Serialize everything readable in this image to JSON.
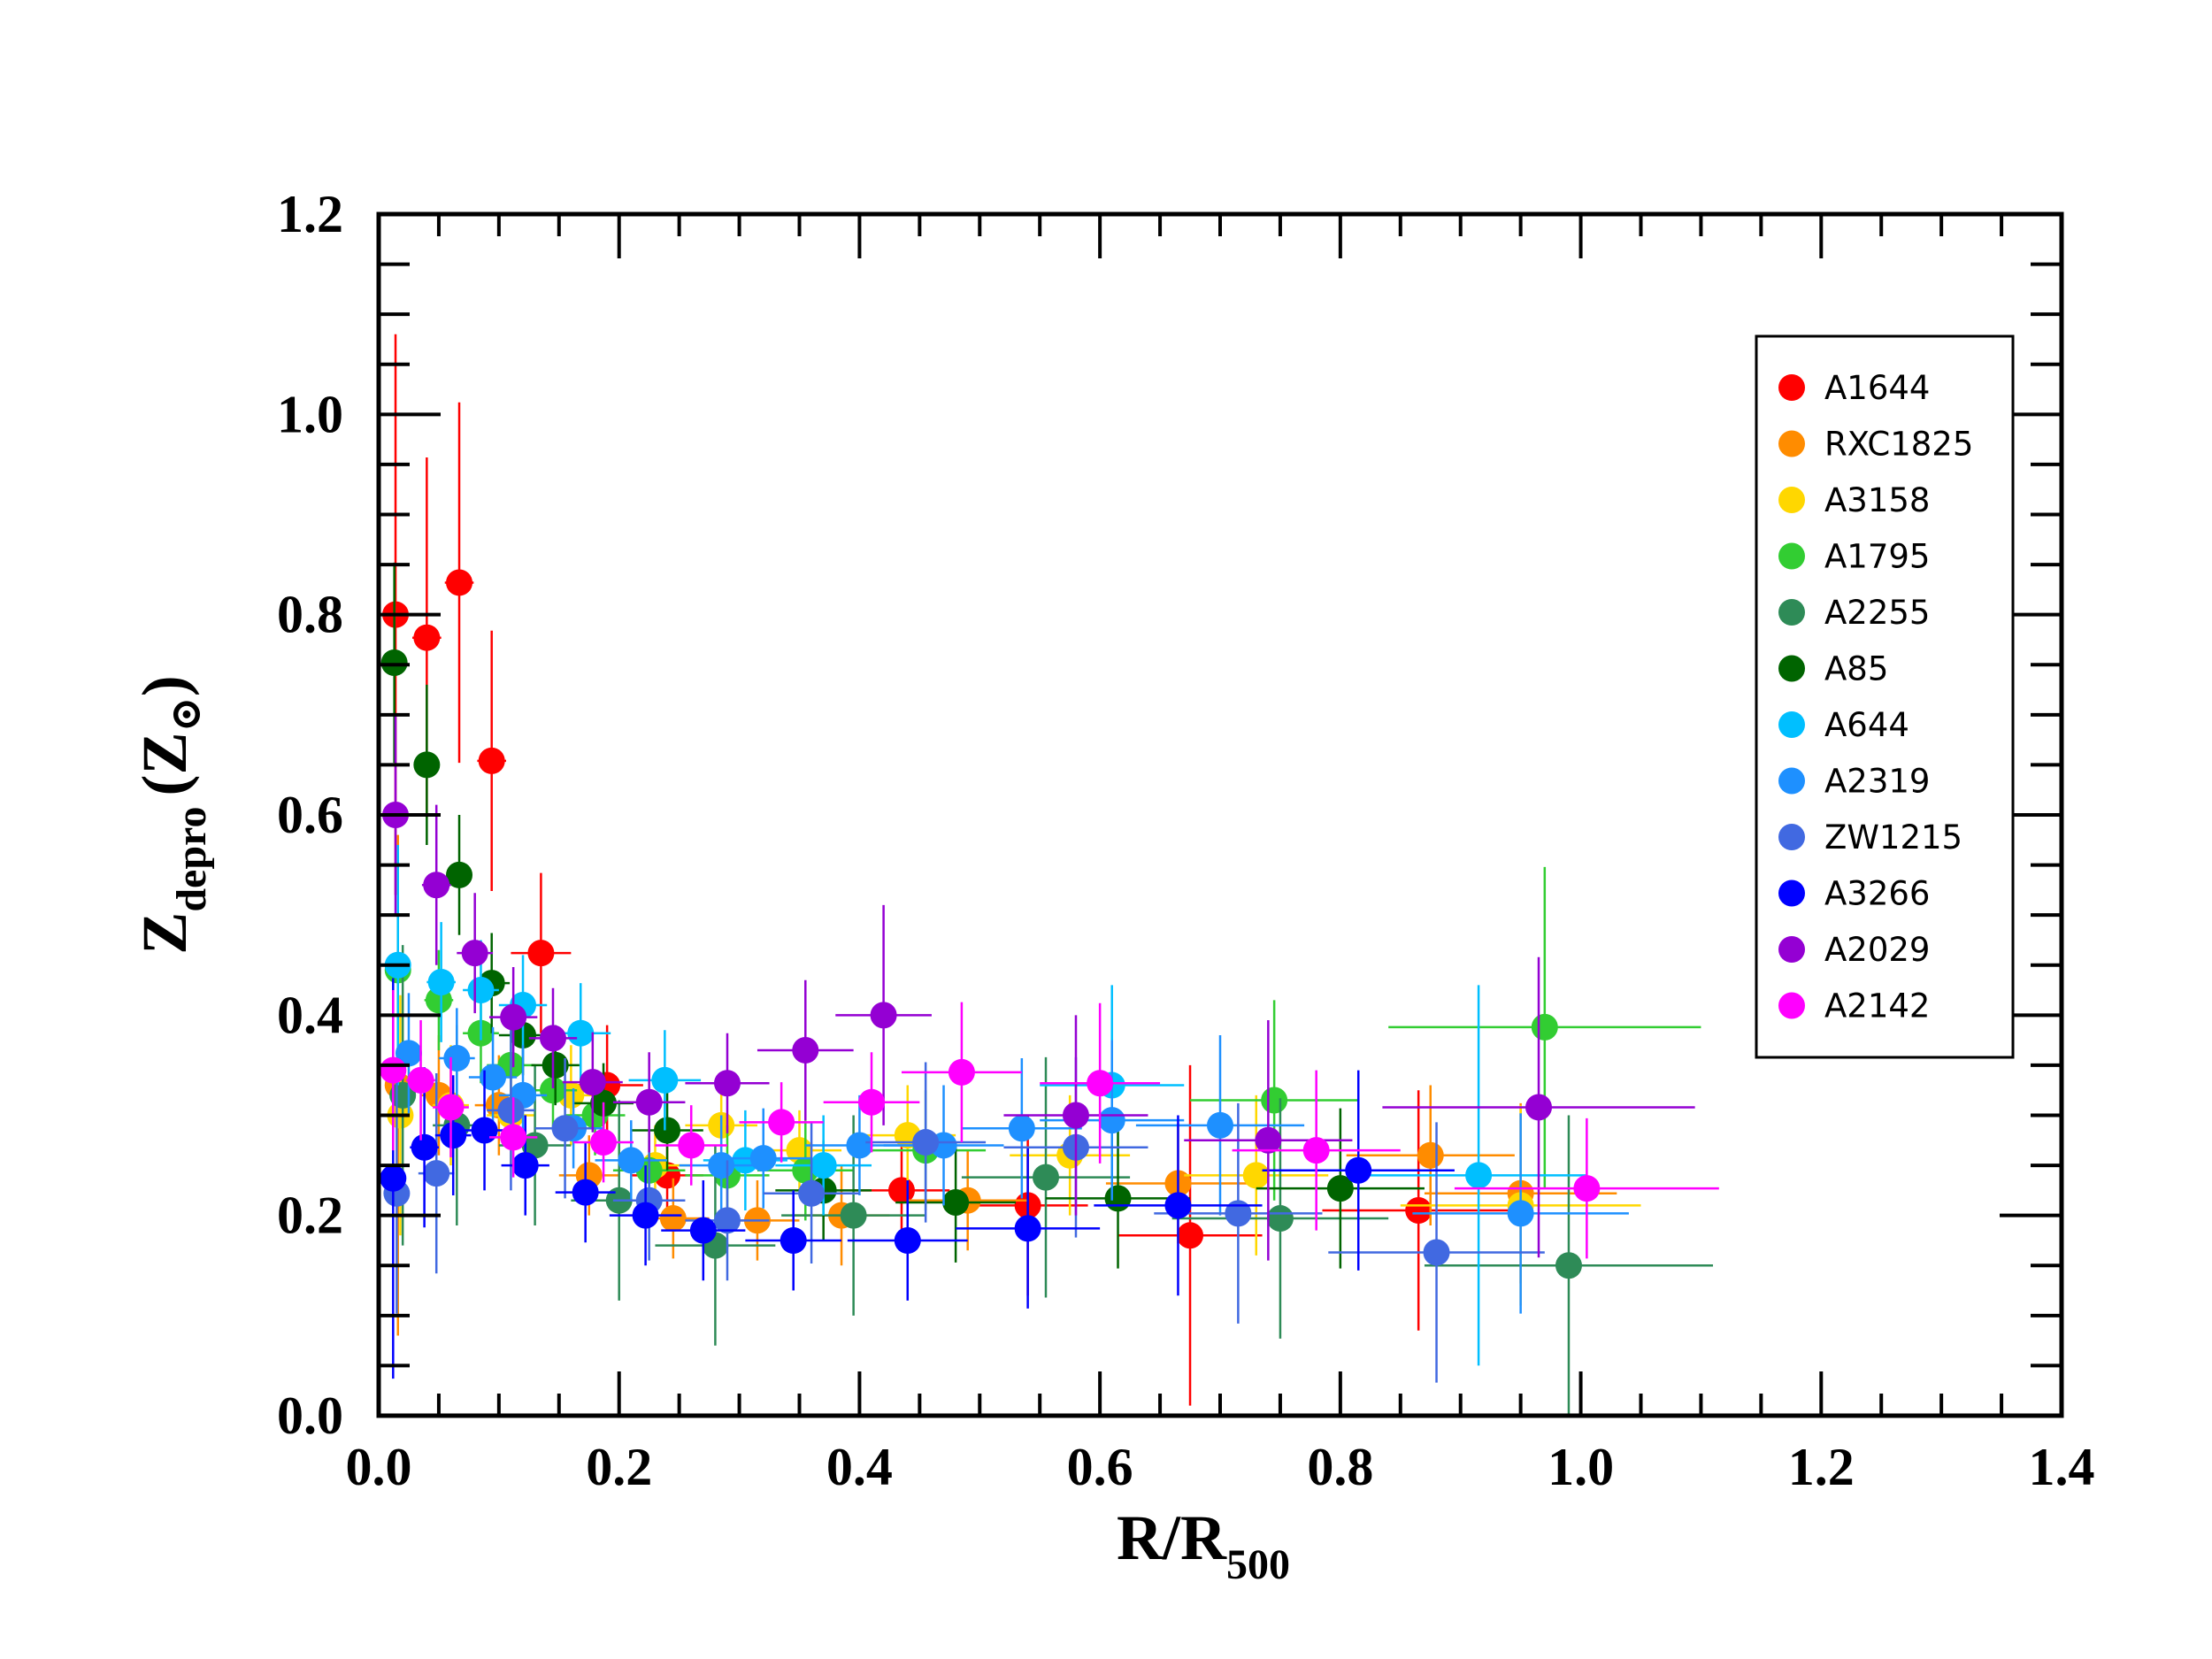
{
  "chart_data": {
    "type": "scatter",
    "title": "",
    "xlabel": {
      "main": "R/R",
      "sub": "500"
    },
    "ylabel": {
      "main": "Z",
      "sub": "depro",
      "unit": "(Z",
      "unit_sub": "⊙",
      "unit_close": ")"
    },
    "xlim": [
      0,
      1.4
    ],
    "ylim": [
      0,
      1.2
    ],
    "x_ticks": [
      "0.0",
      "0.2",
      "0.4",
      "0.6",
      "0.8",
      "1.0",
      "1.2",
      "1.4"
    ],
    "y_ticks": [
      "0.0",
      "0.2",
      "0.4",
      "0.6",
      "0.8",
      "1.0",
      "1.2"
    ],
    "grid": false,
    "legend_position": "upper-right",
    "series": [
      {
        "name": "A1644",
        "color": "#ff0000",
        "points": [
          [
            0.014,
            0.8,
            0.005,
            0.28
          ],
          [
            0.04,
            0.777,
            0.012,
            0.18
          ],
          [
            0.067,
            0.832,
            0.012,
            0.18
          ],
          [
            0.094,
            0.654,
            0.012,
            0.13
          ],
          [
            0.135,
            0.462,
            0.025,
            0.08
          ],
          [
            0.19,
            0.33,
            0.03,
            0.06
          ],
          [
            0.24,
            0.24,
            0.03,
            0.05
          ],
          [
            0.435,
            0.225,
            0.04,
            0.05
          ],
          [
            0.54,
            0.21,
            0.05,
            0.09
          ],
          [
            0.675,
            0.18,
            0.06,
            0.17
          ],
          [
            0.865,
            0.205,
            0.08,
            0.12
          ]
        ]
      },
      {
        "name": "RXC1825",
        "color": "#ff8c00",
        "points": [
          [
            0.016,
            0.33,
            0.008,
            0.25
          ],
          [
            0.05,
            0.32,
            0.015,
            0.06
          ],
          [
            0.1,
            0.31,
            0.02,
            0.05
          ],
          [
            0.175,
            0.24,
            0.025,
            0.04
          ],
          [
            0.245,
            0.197,
            0.03,
            0.04
          ],
          [
            0.315,
            0.195,
            0.035,
            0.04
          ],
          [
            0.385,
            0.2,
            0.04,
            0.05
          ],
          [
            0.49,
            0.215,
            0.05,
            0.05
          ],
          [
            0.665,
            0.232,
            0.06,
            0.06
          ],
          [
            0.875,
            0.26,
            0.07,
            0.07
          ],
          [
            0.95,
            0.222,
            0.08,
            0.09
          ]
        ]
      },
      {
        "name": "A3158",
        "color": "#ffd700",
        "points": [
          [
            0.018,
            0.3,
            0.008,
            0.12
          ],
          [
            0.06,
            0.31,
            0.015,
            0.06
          ],
          [
            0.11,
            0.3,
            0.02,
            0.05
          ],
          [
            0.16,
            0.32,
            0.02,
            0.05
          ],
          [
            0.23,
            0.25,
            0.03,
            0.04
          ],
          [
            0.285,
            0.29,
            0.03,
            0.04
          ],
          [
            0.35,
            0.265,
            0.035,
            0.04
          ],
          [
            0.44,
            0.28,
            0.04,
            0.05
          ],
          [
            0.575,
            0.26,
            0.05,
            0.06
          ],
          [
            0.73,
            0.24,
            0.06,
            0.08
          ],
          [
            0.95,
            0.21,
            0.1,
            0.1
          ]
        ]
      },
      {
        "name": "A1795",
        "color": "#32cd32",
        "points": [
          [
            0.016,
            0.445,
            0.008,
            0.1
          ],
          [
            0.05,
            0.415,
            0.012,
            0.05
          ],
          [
            0.085,
            0.382,
            0.015,
            0.05
          ],
          [
            0.11,
            0.35,
            0.02,
            0.04
          ],
          [
            0.145,
            0.325,
            0.02,
            0.04
          ],
          [
            0.18,
            0.3,
            0.025,
            0.04
          ],
          [
            0.225,
            0.245,
            0.03,
            0.04
          ],
          [
            0.29,
            0.24,
            0.035,
            0.05
          ],
          [
            0.355,
            0.245,
            0.04,
            0.05
          ],
          [
            0.455,
            0.265,
            0.05,
            0.06
          ],
          [
            0.745,
            0.315,
            0.07,
            0.1
          ],
          [
            0.97,
            0.388,
            0.13,
            0.16
          ]
        ]
      },
      {
        "name": "A2255",
        "color": "#2e8b57",
        "points": [
          [
            0.02,
            0.32,
            0.01,
            0.15
          ],
          [
            0.065,
            0.29,
            0.02,
            0.1
          ],
          [
            0.13,
            0.27,
            0.03,
            0.08
          ],
          [
            0.2,
            0.215,
            0.04,
            0.1
          ],
          [
            0.28,
            0.17,
            0.05,
            0.1
          ],
          [
            0.395,
            0.2,
            0.06,
            0.1
          ],
          [
            0.555,
            0.238,
            0.07,
            0.12
          ],
          [
            0.75,
            0.197,
            0.09,
            0.12
          ],
          [
            0.99,
            0.15,
            0.12,
            0.15
          ]
        ]
      },
      {
        "name": "A85",
        "color": "#006400",
        "points": [
          [
            0.013,
            0.752,
            0.005,
            0.1
          ],
          [
            0.04,
            0.65,
            0.01,
            0.08
          ],
          [
            0.067,
            0.54,
            0.01,
            0.06
          ],
          [
            0.094,
            0.432,
            0.015,
            0.05
          ],
          [
            0.12,
            0.38,
            0.02,
            0.04
          ],
          [
            0.147,
            0.35,
            0.02,
            0.04
          ],
          [
            0.187,
            0.312,
            0.025,
            0.04
          ],
          [
            0.24,
            0.285,
            0.03,
            0.04
          ],
          [
            0.37,
            0.225,
            0.04,
            0.05
          ],
          [
            0.48,
            0.213,
            0.05,
            0.06
          ],
          [
            0.615,
            0.217,
            0.06,
            0.07
          ],
          [
            0.8,
            0.227,
            0.07,
            0.08
          ]
        ]
      },
      {
        "name": "A644",
        "color": "#00bfff",
        "points": [
          [
            0.016,
            0.45,
            0.008,
            0.12
          ],
          [
            0.052,
            0.433,
            0.012,
            0.06
          ],
          [
            0.085,
            0.425,
            0.015,
            0.05
          ],
          [
            0.12,
            0.41,
            0.02,
            0.05
          ],
          [
            0.168,
            0.382,
            0.025,
            0.05
          ],
          [
            0.238,
            0.335,
            0.03,
            0.05
          ],
          [
            0.305,
            0.255,
            0.035,
            0.05
          ],
          [
            0.37,
            0.25,
            0.04,
            0.05
          ],
          [
            0.61,
            0.33,
            0.06,
            0.1
          ],
          [
            0.915,
            0.24,
            0.09,
            0.19
          ]
        ]
      },
      {
        "name": "A2319",
        "color": "#1e90ff",
        "points": [
          [
            0.025,
            0.362,
            0.01,
            0.06
          ],
          [
            0.065,
            0.357,
            0.015,
            0.05
          ],
          [
            0.095,
            0.338,
            0.02,
            0.05
          ],
          [
            0.12,
            0.32,
            0.02,
            0.05
          ],
          [
            0.162,
            0.287,
            0.025,
            0.04
          ],
          [
            0.21,
            0.255,
            0.03,
            0.04
          ],
          [
            0.285,
            0.25,
            0.035,
            0.05
          ],
          [
            0.32,
            0.257,
            0.04,
            0.05
          ],
          [
            0.4,
            0.27,
            0.045,
            0.05
          ],
          [
            0.47,
            0.27,
            0.05,
            0.06
          ],
          [
            0.535,
            0.287,
            0.05,
            0.07
          ],
          [
            0.61,
            0.295,
            0.06,
            0.08
          ],
          [
            0.7,
            0.29,
            0.07,
            0.09
          ],
          [
            0.95,
            0.202,
            0.09,
            0.1
          ]
        ]
      },
      {
        "name": "ZW1215",
        "color": "#4169e1",
        "points": [
          [
            0.015,
            0.222,
            0.008,
            0.12
          ],
          [
            0.048,
            0.242,
            0.015,
            0.1
          ],
          [
            0.11,
            0.305,
            0.02,
            0.08
          ],
          [
            0.155,
            0.287,
            0.025,
            0.07
          ],
          [
            0.225,
            0.215,
            0.03,
            0.06
          ],
          [
            0.29,
            0.195,
            0.035,
            0.06
          ],
          [
            0.36,
            0.222,
            0.04,
            0.07
          ],
          [
            0.455,
            0.273,
            0.05,
            0.08
          ],
          [
            0.58,
            0.268,
            0.06,
            0.09
          ],
          [
            0.715,
            0.202,
            0.07,
            0.11
          ],
          [
            0.88,
            0.163,
            0.09,
            0.13
          ]
        ]
      },
      {
        "name": "A3266",
        "color": "#0000ff",
        "points": [
          [
            0.012,
            0.237,
            0.005,
            0.2
          ],
          [
            0.038,
            0.268,
            0.012,
            0.08
          ],
          [
            0.062,
            0.28,
            0.015,
            0.06
          ],
          [
            0.088,
            0.285,
            0.018,
            0.06
          ],
          [
            0.122,
            0.25,
            0.02,
            0.05
          ],
          [
            0.172,
            0.223,
            0.025,
            0.05
          ],
          [
            0.222,
            0.2,
            0.03,
            0.05
          ],
          [
            0.27,
            0.185,
            0.035,
            0.05
          ],
          [
            0.345,
            0.175,
            0.04,
            0.05
          ],
          [
            0.44,
            0.175,
            0.05,
            0.06
          ],
          [
            0.54,
            0.187,
            0.06,
            0.08
          ],
          [
            0.665,
            0.21,
            0.07,
            0.09
          ],
          [
            0.815,
            0.245,
            0.08,
            0.1
          ]
        ]
      },
      {
        "name": "A2029",
        "color": "#9400d3",
        "points": [
          [
            0.014,
            0.6,
            0.006,
            0.1
          ],
          [
            0.048,
            0.53,
            0.012,
            0.08
          ],
          [
            0.08,
            0.462,
            0.015,
            0.06
          ],
          [
            0.112,
            0.398,
            0.02,
            0.05
          ],
          [
            0.145,
            0.377,
            0.02,
            0.05
          ],
          [
            0.178,
            0.333,
            0.025,
            0.05
          ],
          [
            0.225,
            0.313,
            0.03,
            0.05
          ],
          [
            0.29,
            0.332,
            0.035,
            0.05
          ],
          [
            0.355,
            0.365,
            0.04,
            0.07
          ],
          [
            0.42,
            0.4,
            0.04,
            0.11
          ],
          [
            0.58,
            0.3,
            0.06,
            0.1
          ],
          [
            0.74,
            0.275,
            0.07,
            0.12
          ],
          [
            0.965,
            0.308,
            0.13,
            0.15
          ]
        ]
      },
      {
        "name": "A2142",
        "color": "#ff00ff",
        "points": [
          [
            0.012,
            0.345,
            0.006,
            0.08
          ],
          [
            0.035,
            0.335,
            0.012,
            0.06
          ],
          [
            0.06,
            0.308,
            0.015,
            0.05
          ],
          [
            0.112,
            0.278,
            0.02,
            0.04
          ],
          [
            0.187,
            0.273,
            0.025,
            0.04
          ],
          [
            0.26,
            0.27,
            0.03,
            0.04
          ],
          [
            0.335,
            0.293,
            0.035,
            0.04
          ],
          [
            0.41,
            0.313,
            0.04,
            0.05
          ],
          [
            0.485,
            0.343,
            0.05,
            0.07
          ],
          [
            0.6,
            0.332,
            0.05,
            0.08
          ],
          [
            0.78,
            0.265,
            0.07,
            0.08
          ],
          [
            1.005,
            0.227,
            0.11,
            0.07
          ]
        ]
      }
    ]
  }
}
